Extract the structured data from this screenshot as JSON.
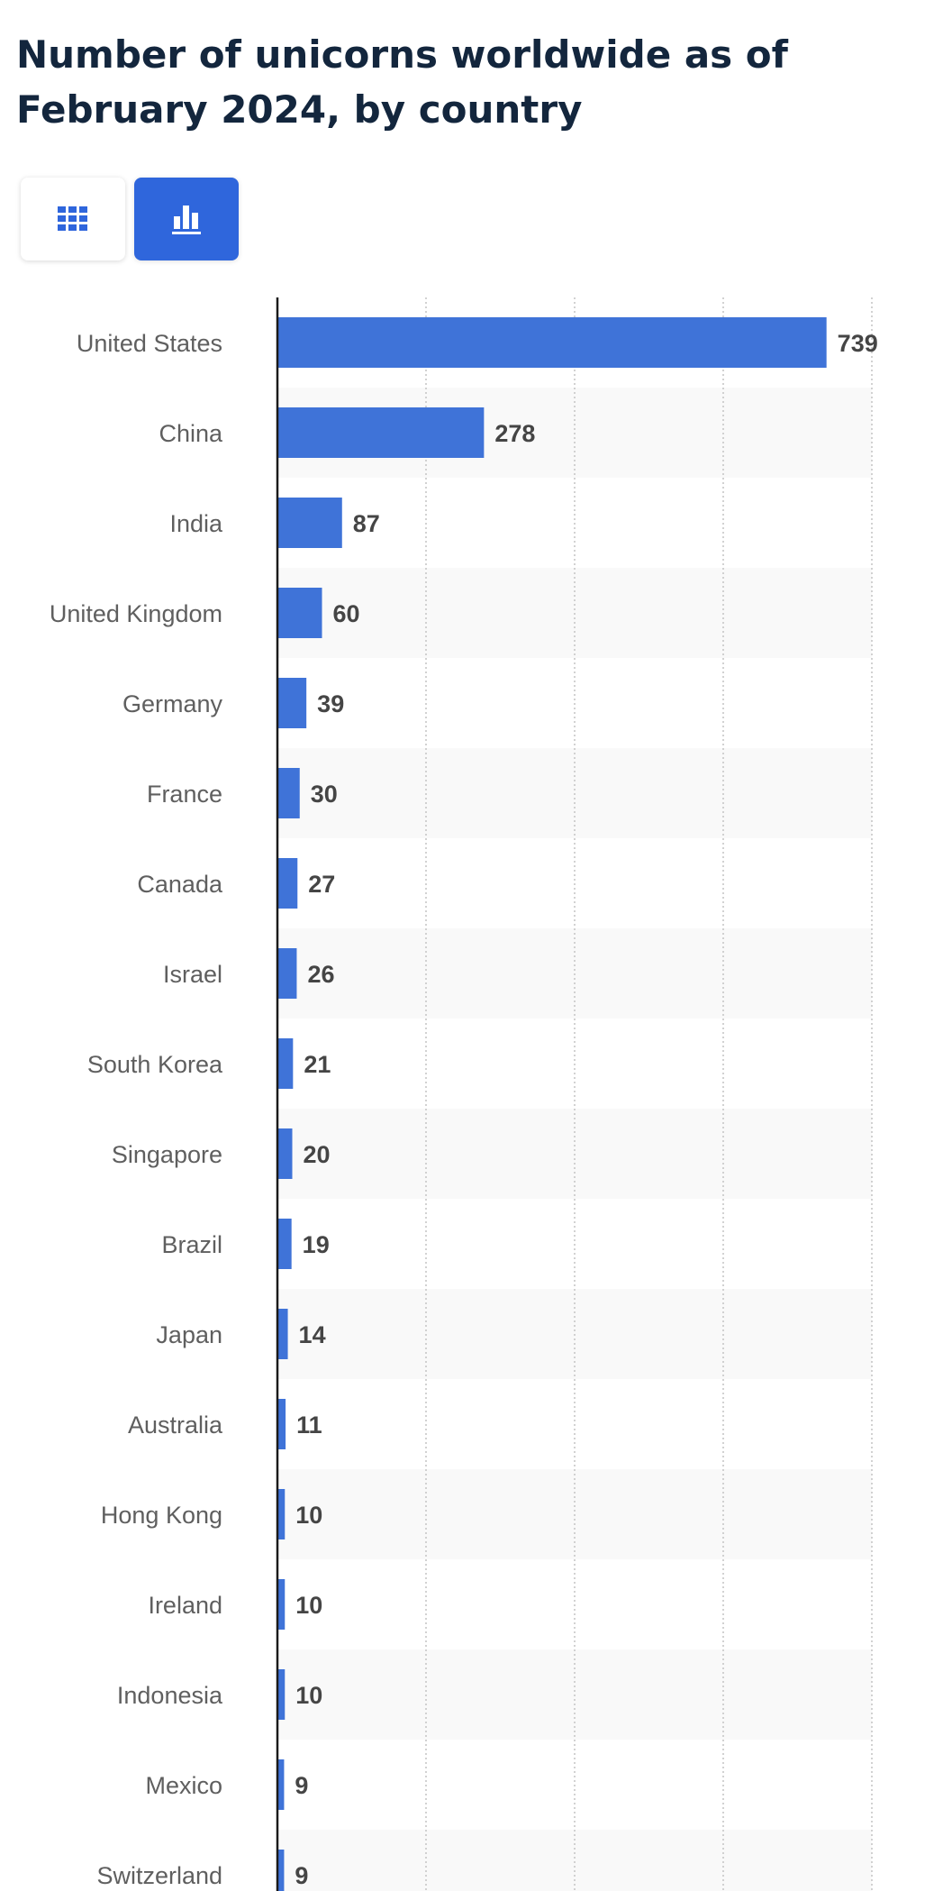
{
  "title": "Number of unicorns worldwide as of February 2024, by country",
  "view_toggle": {
    "table_icon": "table-grid-icon",
    "chart_icon": "bar-chart-icon",
    "active": "chart"
  },
  "colors": {
    "bar": "#3f73d8",
    "active_button": "#2f66dc",
    "title": "#13263d",
    "stripe": "#f9f9f9"
  },
  "chart_data": {
    "type": "bar",
    "orientation": "horizontal",
    "title": "Number of unicorns worldwide as of February 2024, by country",
    "xlabel": "",
    "ylabel": "",
    "xlim": [
      0,
      800
    ],
    "grid": true,
    "data_labels": true,
    "categories": [
      "United States",
      "China",
      "India",
      "United Kingdom",
      "Germany",
      "France",
      "Canada",
      "Israel",
      "South Korea",
      "Singapore",
      "Brazil",
      "Japan",
      "Australia",
      "Hong Kong",
      "Ireland",
      "Indonesia",
      "Mexico",
      "Switzerland"
    ],
    "values": [
      739,
      278,
      87,
      60,
      39,
      30,
      27,
      26,
      21,
      20,
      19,
      14,
      11,
      10,
      10,
      10,
      9,
      9
    ]
  }
}
